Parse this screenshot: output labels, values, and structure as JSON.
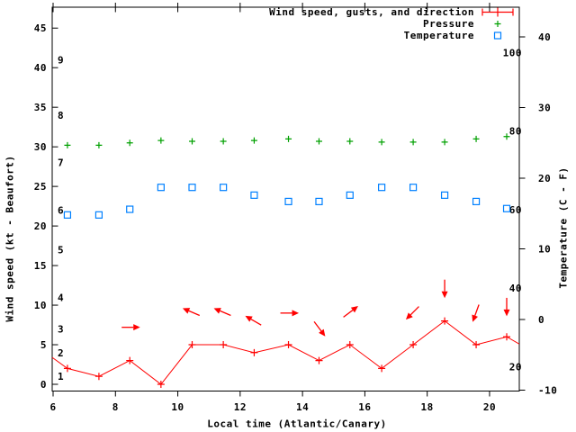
{
  "axes": {
    "x_label": "Local time (Atlantic/Canary)",
    "y_left_label": "Wind speed (kt - Beaufort)",
    "y_right_label": "Temperature (C - F)"
  },
  "legend": {
    "items": [
      {
        "label": "Wind speed, gusts, and direction",
        "marker": "errorbar-plus-sample",
        "color": "#ff0000"
      },
      {
        "label": "Pressure",
        "marker": "plus",
        "color": "#00a000"
      },
      {
        "label": "Temperature",
        "marker": "open-square",
        "color": "#0080ff"
      }
    ]
  },
  "chart_data": {
    "type": "line",
    "title": "",
    "xlabel": "Local time (Atlantic/Canary)",
    "ylabel_left": "Wind speed (kt - Beaufort)",
    "ylabel_right": "Temperature (C - F)",
    "grid": false,
    "legend_position": "top-right",
    "x_axis": {
      "range": [
        5.97,
        20.95
      ],
      "major_ticks": [
        6,
        8,
        10,
        12,
        14,
        16,
        18,
        20
      ]
    },
    "y_left_axis": {
      "range_kt": [
        -0.85,
        47.6
      ],
      "ticks_kt": [
        0,
        5,
        10,
        15,
        20,
        25,
        30,
        35,
        40,
        45
      ],
      "beaufort_scale_labels": [
        {
          "beaufort": 1,
          "kt": 1
        },
        {
          "beaufort": 2,
          "kt": 4
        },
        {
          "beaufort": 3,
          "kt": 7
        },
        {
          "beaufort": 4,
          "kt": 11
        },
        {
          "beaufort": 5,
          "kt": 17
        },
        {
          "beaufort": 6,
          "kt": 22
        },
        {
          "beaufort": 7,
          "kt": 28
        },
        {
          "beaufort": 8,
          "kt": 34
        },
        {
          "beaufort": 9,
          "kt": 41
        }
      ]
    },
    "y_right_axis": {
      "range_c": [
        -10.1,
        44.2
      ],
      "ticks_c": [
        -10,
        0,
        10,
        20,
        30,
        40
      ],
      "fahrenheit_scale_labels": [
        20,
        40,
        60,
        80,
        100
      ]
    },
    "x": [
      6.46,
      7.47,
      8.46,
      9.46,
      10.46,
      11.46,
      12.45,
      13.55,
      14.53,
      15.52,
      16.54,
      17.55,
      18.56,
      19.57,
      20.55
    ],
    "series": [
      {
        "name": "Wind speed, gusts, and direction",
        "color": "#ff0000",
        "marker": "plus",
        "line": true,
        "axis": "left",
        "values_kt": [
          2,
          1,
          3,
          0,
          5,
          5,
          4,
          5,
          3,
          5,
          2,
          5,
          8,
          5,
          6
        ],
        "clipped_edge_points": {
          "left": [
            5.97,
            3.4
          ],
          "right": [
            20.95,
            5.1
          ]
        }
      },
      {
        "name": "Pressure",
        "color": "#00a000",
        "marker": "plus",
        "line": false,
        "axis": "left",
        "values_on_left_axis_scale": [
          30.2,
          30.2,
          30.5,
          30.8,
          30.7,
          30.7,
          30.8,
          31.0,
          30.7,
          30.7,
          30.6,
          30.6,
          30.6,
          31.0,
          31.3
        ]
      },
      {
        "name": "Temperature",
        "color": "#0080ff",
        "marker": "open-square",
        "line": false,
        "axis": "right",
        "values_c": [
          14.8,
          14.8,
          15.6,
          18.7,
          18.7,
          18.7,
          17.6,
          16.7,
          16.7,
          17.6,
          18.7,
          18.7,
          17.6,
          16.7,
          15.7
        ]
      }
    ],
    "wind_direction_arrows": [
      {
        "t": 8.46,
        "y_kt": 7.2,
        "angle_deg": 0,
        "toward": "E"
      },
      {
        "t": 10.46,
        "y_kt": 9.1,
        "angle_deg": 203,
        "toward": "WNW"
      },
      {
        "t": 11.46,
        "y_kt": 9.1,
        "angle_deg": 203,
        "toward": "WNW"
      },
      {
        "t": 12.45,
        "y_kt": 8.0,
        "angle_deg": 210,
        "toward": "WNW"
      },
      {
        "t": 13.55,
        "y_kt": 9.0,
        "angle_deg": 0,
        "toward": "E"
      },
      {
        "t": 14.53,
        "y_kt": 7.1,
        "angle_deg": 53,
        "toward": "SE"
      },
      {
        "t": 15.52,
        "y_kt": 9.1,
        "angle_deg": 323,
        "toward": "NE"
      },
      {
        "t": 17.55,
        "y_kt": 9.1,
        "angle_deg": 135,
        "toward": "SW"
      },
      {
        "t": 18.56,
        "y_kt": 12.2,
        "angle_deg": 90,
        "toward": "S"
      },
      {
        "t": 19.57,
        "y_kt": 9.1,
        "angle_deg": 110,
        "toward": "SSW"
      },
      {
        "t": 20.55,
        "y_kt": 9.9,
        "angle_deg": 90,
        "toward": "S"
      }
    ]
  }
}
